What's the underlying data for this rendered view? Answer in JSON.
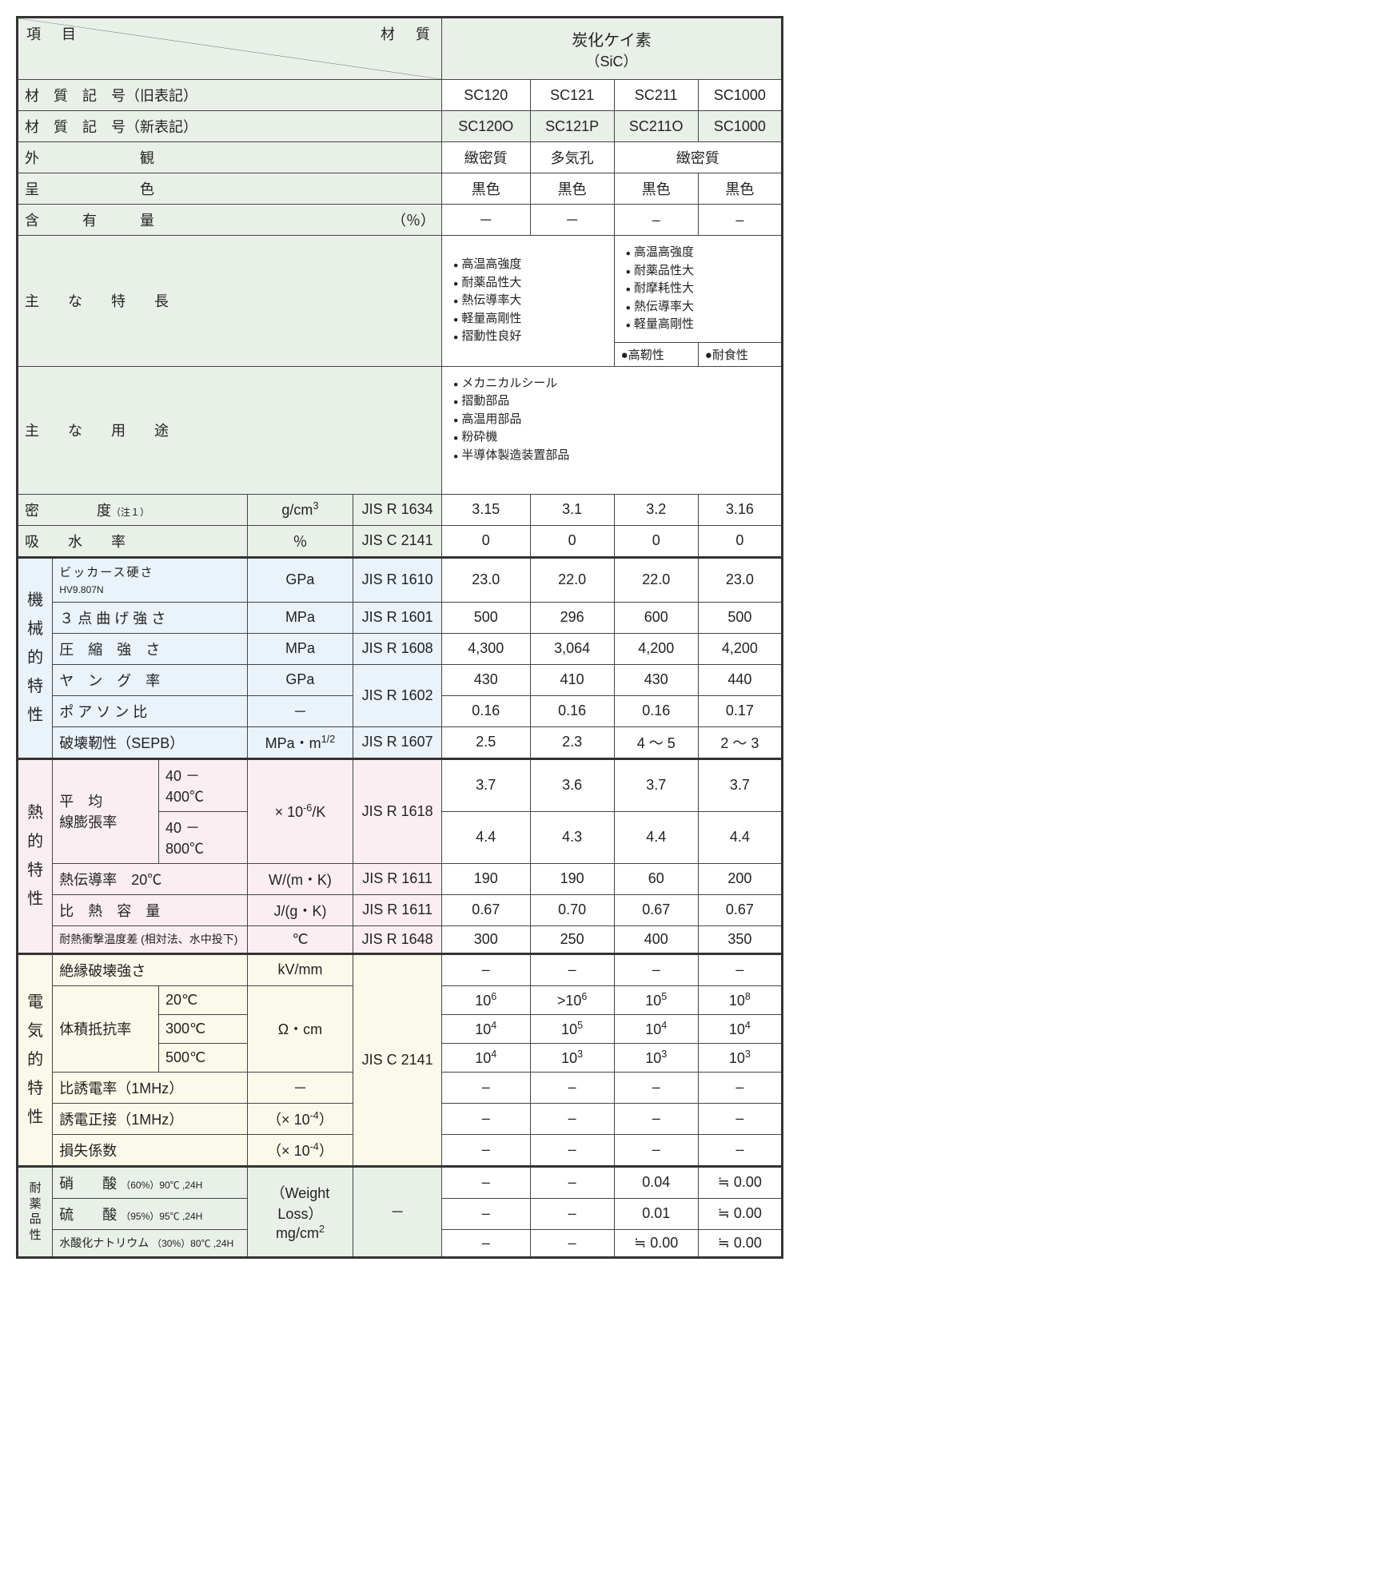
{
  "header": {
    "item_label": "項　目",
    "material_label": "材　質",
    "material_name": "炭化ケイ素",
    "material_formula": "（SiC）"
  },
  "row_labels": {
    "old_code": "材　質　記　号（旧表記）",
    "new_code": "材　質　記　号（新表記）",
    "appearance": "外　　　　　　　観",
    "color": "呈　　　　　　　色",
    "content": "含　　　有　　　量",
    "content_unit": "（％）",
    "features": "主　　な　　特　　長",
    "uses": "主　　な　　用　　途",
    "density": "密　　　　度",
    "density_note": "（注１）",
    "density_unit": "g/cm",
    "density_std": "JIS R 1634",
    "absorption": "吸　　水　　率",
    "absorption_unit": "％",
    "absorption_std": "JIS C 2141",
    "mech_label": "機械的特性",
    "vickers": "ビッカース硬さ",
    "vickers_sub": "HV9.807N",
    "vickers_unit": "GPa",
    "vickers_std": "JIS R 1610",
    "bend": "３ 点 曲 げ 強 さ",
    "bend_unit": "MPa",
    "bend_std": "JIS R 1601",
    "compress": "圧　縮　強　さ",
    "compress_unit": "MPa",
    "compress_std": "JIS R 1608",
    "young": "ヤ　ン　グ　率",
    "young_unit": "GPa",
    "young_poisson_std": "JIS R 1602",
    "poisson": "ポ ア ソ ン 比",
    "poisson_unit": "－",
    "fracture": "破壊靭性（SEPB）",
    "fracture_unit": "MPa・m",
    "fracture_std": "JIS R 1607",
    "thermal_label": "熱的特性",
    "cte": "平　均",
    "cte2": "線膨張率",
    "cte_range1": "40 － 400℃",
    "cte_range2": "40 － 800℃",
    "cte_unit": "× 10",
    "cte_unit2": "/K",
    "cte_std": "JIS R 1618",
    "thermcond": "熱伝導率　20℃",
    "thermcond_unit": "W/(m・K)",
    "thermcond_std": "JIS R 1611",
    "heatcap": "比　熱　容　量",
    "heatcap_unit": "J/(g・K)",
    "heatcap_std": "JIS R 1611",
    "thermshock": "耐熱衝撃温度差 (相対法、水中投下)",
    "thermshock_unit": "℃",
    "thermshock_std": "JIS R 1648",
    "elec_label": "電気的特性",
    "dielec_str": "絶縁破壊強さ",
    "dielec_str_unit": "kV/mm",
    "vol_res": "体積抵抗率",
    "vol_res_20": "20℃",
    "vol_res_300": "300℃",
    "vol_res_500": "500℃",
    "vol_res_unit": "Ω・cm",
    "elec_std": "JIS C 2141",
    "permittivity": "比誘電率（1MHz）",
    "permittivity_unit": "－",
    "tan": "誘電正接（1MHz）",
    "tan_unit": "（× 10",
    "loss": "損失係数",
    "loss_unit": "（× 10",
    "chem_label": "耐薬品性",
    "nitric": "硝　　酸",
    "nitric_cond": "（60%）90℃ ,24H",
    "sulfuric": "硫　　酸",
    "sulfuric_cond": "（95%）95℃ ,24H",
    "naoh": "水酸化ナトリウム",
    "naoh_cond": "（30%）80℃ ,24H",
    "wl": "（Weight Loss）",
    "wl_unit": "mg/cm",
    "chem_std": "－"
  },
  "cols": {
    "old": [
      "SC120",
      "SC121",
      "SC211",
      "SC1000"
    ],
    "new": [
      "SC120O",
      "SC121P",
      "SC211O",
      "SC1000"
    ],
    "appearance": [
      "緻密質",
      "多気孔",
      "緻密質"
    ],
    "color": [
      "黒色",
      "黒色",
      "黒色",
      "黒色"
    ],
    "content": [
      "－",
      "－",
      "–",
      "–"
    ],
    "features1": [
      "高温高強度",
      "耐薬品性大",
      "熱伝導率大",
      "軽量高剛性",
      "摺動性良好"
    ],
    "features2": [
      "高温高強度",
      "耐薬品性大",
      "耐摩耗性大",
      "熱伝導率大",
      "軽量高剛性"
    ],
    "feature_sc211": "高靭性",
    "feature_sc1000": "耐食性",
    "uses": [
      "メカニカルシール",
      "摺動部品",
      "高温用部品",
      "粉砕機",
      "半導体製造装置部品"
    ],
    "density": [
      "3.15",
      "3.1",
      "3.2",
      "3.16"
    ],
    "absorption": [
      "0",
      "0",
      "0",
      "0"
    ],
    "vickers": [
      "23.0",
      "22.0",
      "22.0",
      "23.0"
    ],
    "bend": [
      "500",
      "296",
      "600",
      "500"
    ],
    "compress": [
      "4,300",
      "3,064",
      "4,200",
      "4,200"
    ],
    "young": [
      "430",
      "410",
      "430",
      "440"
    ],
    "poisson": [
      "0.16",
      "0.16",
      "0.16",
      "0.17"
    ],
    "fracture": [
      "2.5",
      "2.3",
      "4 ～ 5",
      "2 ～ 3"
    ],
    "cte1": [
      "3.7",
      "3.6",
      "3.7",
      "3.7"
    ],
    "cte2": [
      "4.4",
      "4.3",
      "4.4",
      "4.4"
    ],
    "thermcond": [
      "190",
      "190",
      "60",
      "200"
    ],
    "heatcap": [
      "0.67",
      "0.70",
      "0.67",
      "0.67"
    ],
    "thermshock": [
      "300",
      "250",
      "400",
      "350"
    ],
    "dielec_str": [
      "–",
      "–",
      "–",
      "–"
    ],
    "vr20": [
      [
        "10",
        "6"
      ],
      [
        ">10",
        "6"
      ],
      [
        "10",
        "5"
      ],
      [
        "10",
        "8"
      ]
    ],
    "vr300": [
      [
        "10",
        "4"
      ],
      [
        "10",
        "5"
      ],
      [
        "10",
        "4"
      ],
      [
        "10",
        "4"
      ]
    ],
    "vr500": [
      [
        "10",
        "4"
      ],
      [
        "10",
        "3"
      ],
      [
        "10",
        "3"
      ],
      [
        "10",
        "3"
      ]
    ],
    "permittivity": [
      "–",
      "–",
      "–",
      "–"
    ],
    "tan": [
      "–",
      "–",
      "–",
      "–"
    ],
    "loss": [
      "–",
      "–",
      "–",
      "–"
    ],
    "nitric": [
      "–",
      "–",
      "0.04",
      "≒ 0.00"
    ],
    "sulfuric": [
      "–",
      "–",
      "0.01",
      "≒ 0.00"
    ],
    "naoh": [
      "–",
      "–",
      "≒ 0.00",
      "≒ 0.00"
    ]
  },
  "colors": {
    "green": "#e8f0e8",
    "blue": "#eaf2fa",
    "pink": "#faeef2",
    "cream": "#fbf9ea",
    "border": "#444444",
    "thick_border": "#333333"
  }
}
